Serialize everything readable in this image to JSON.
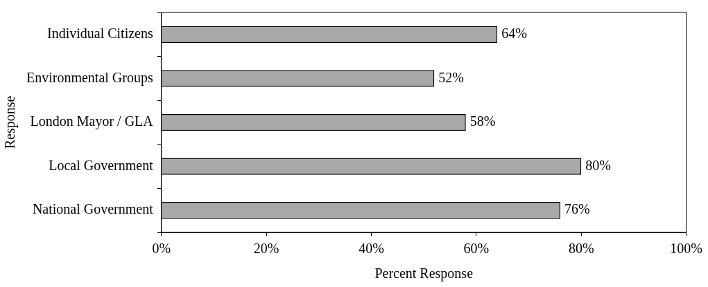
{
  "chart_data": {
    "type": "bar",
    "orientation": "horizontal",
    "xlabel": "Percent Response",
    "ylabel": "Response",
    "categories": [
      "Individual Citizens",
      "Environmental Groups",
      "London Mayor / GLA",
      "Local Government",
      "National Government"
    ],
    "values": [
      64,
      52,
      58,
      80,
      76
    ],
    "color": "#a8a8a8",
    "value_labels": [
      "64%",
      "52%",
      "58%",
      "80%",
      "76%"
    ],
    "xlim": [
      0,
      100
    ],
    "xticks": [
      {
        "value": 0,
        "label": "0%"
      },
      {
        "value": 20,
        "label": "20%"
      },
      {
        "value": 40,
        "label": "40%"
      },
      {
        "value": 60,
        "label": "60%"
      },
      {
        "value": 80,
        "label": "80%"
      },
      {
        "value": 100,
        "label": "100%"
      }
    ],
    "grid": false,
    "legend": false
  }
}
